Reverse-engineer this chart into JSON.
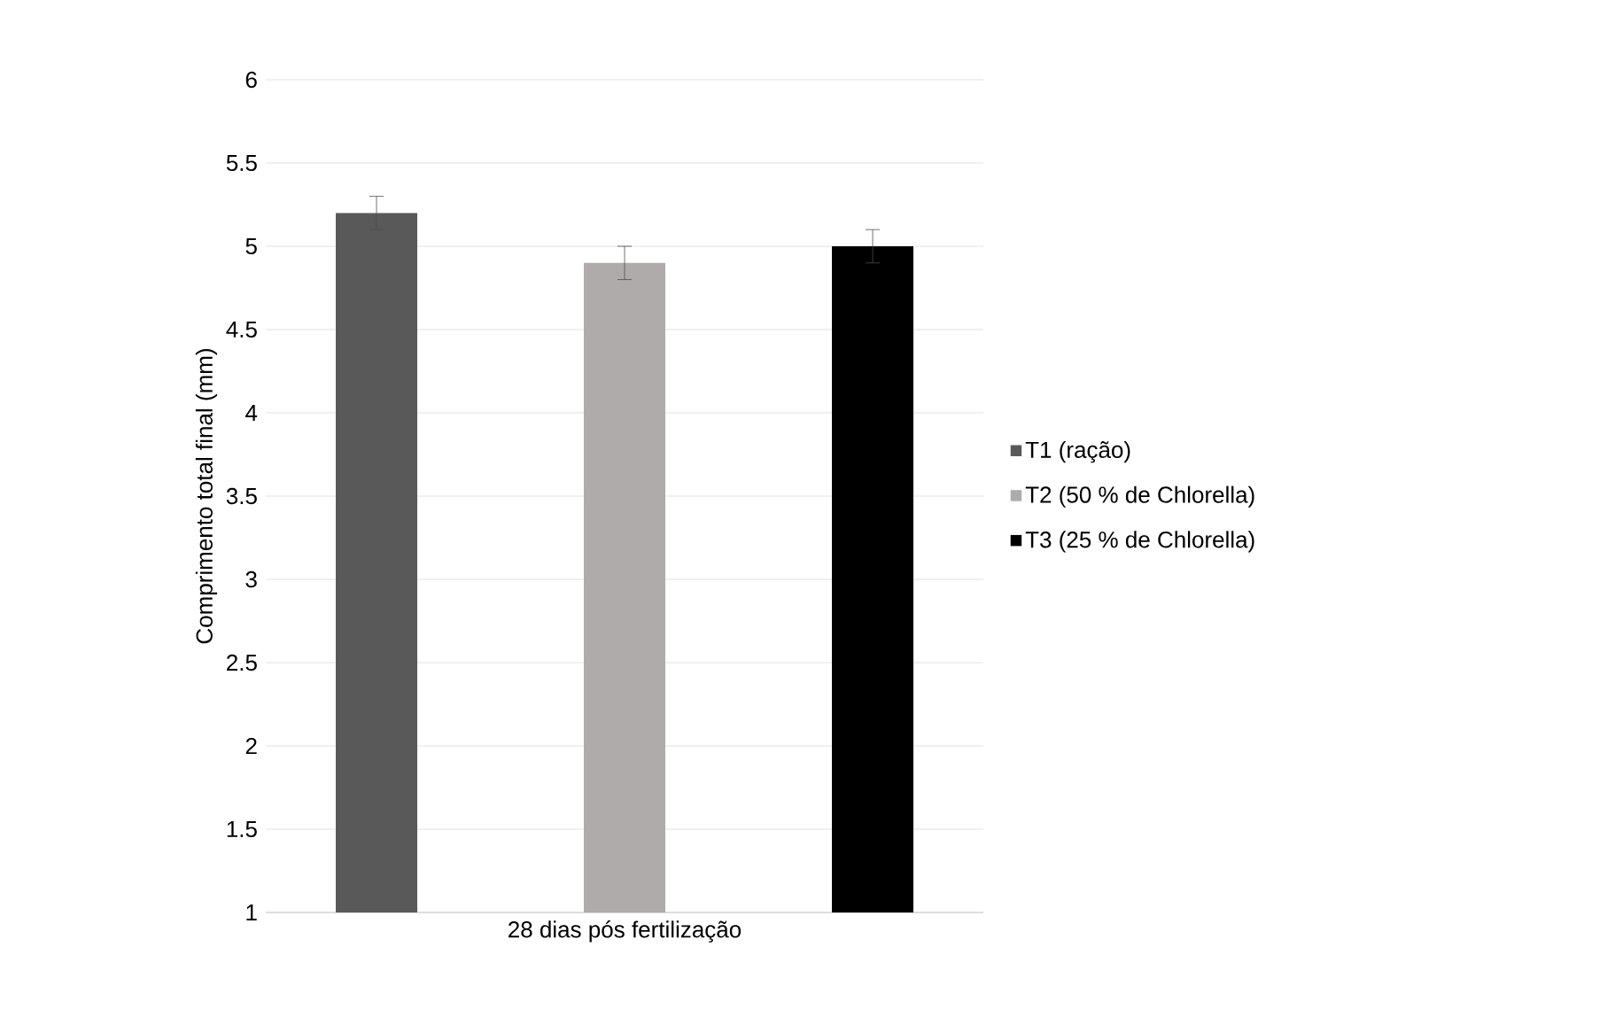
{
  "chart_data": {
    "type": "bar",
    "categories": [
      "28 dias pós fertilização"
    ],
    "ylabel": "Comprimento total final (mm)",
    "series": [
      {
        "name": "T1 (ração)",
        "color": "#595959",
        "values": [
          5.2
        ],
        "errors": [
          0.1
        ]
      },
      {
        "name": "T2 (50 % de Chlorella)",
        "color": "#afabab",
        "values": [
          4.9
        ],
        "errors": [
          0.1
        ]
      },
      {
        "name": "T3 (25 % de Chlorella)",
        "color": "#000000",
        "values": [
          5.0
        ],
        "errors": [
          0.1
        ]
      }
    ],
    "ylim": [
      1,
      6
    ],
    "yticks": [
      1,
      1.5,
      2,
      2.5,
      3,
      3.5,
      4,
      4.5,
      5,
      5.5,
      6
    ],
    "grid": "y",
    "legend": "right"
  }
}
